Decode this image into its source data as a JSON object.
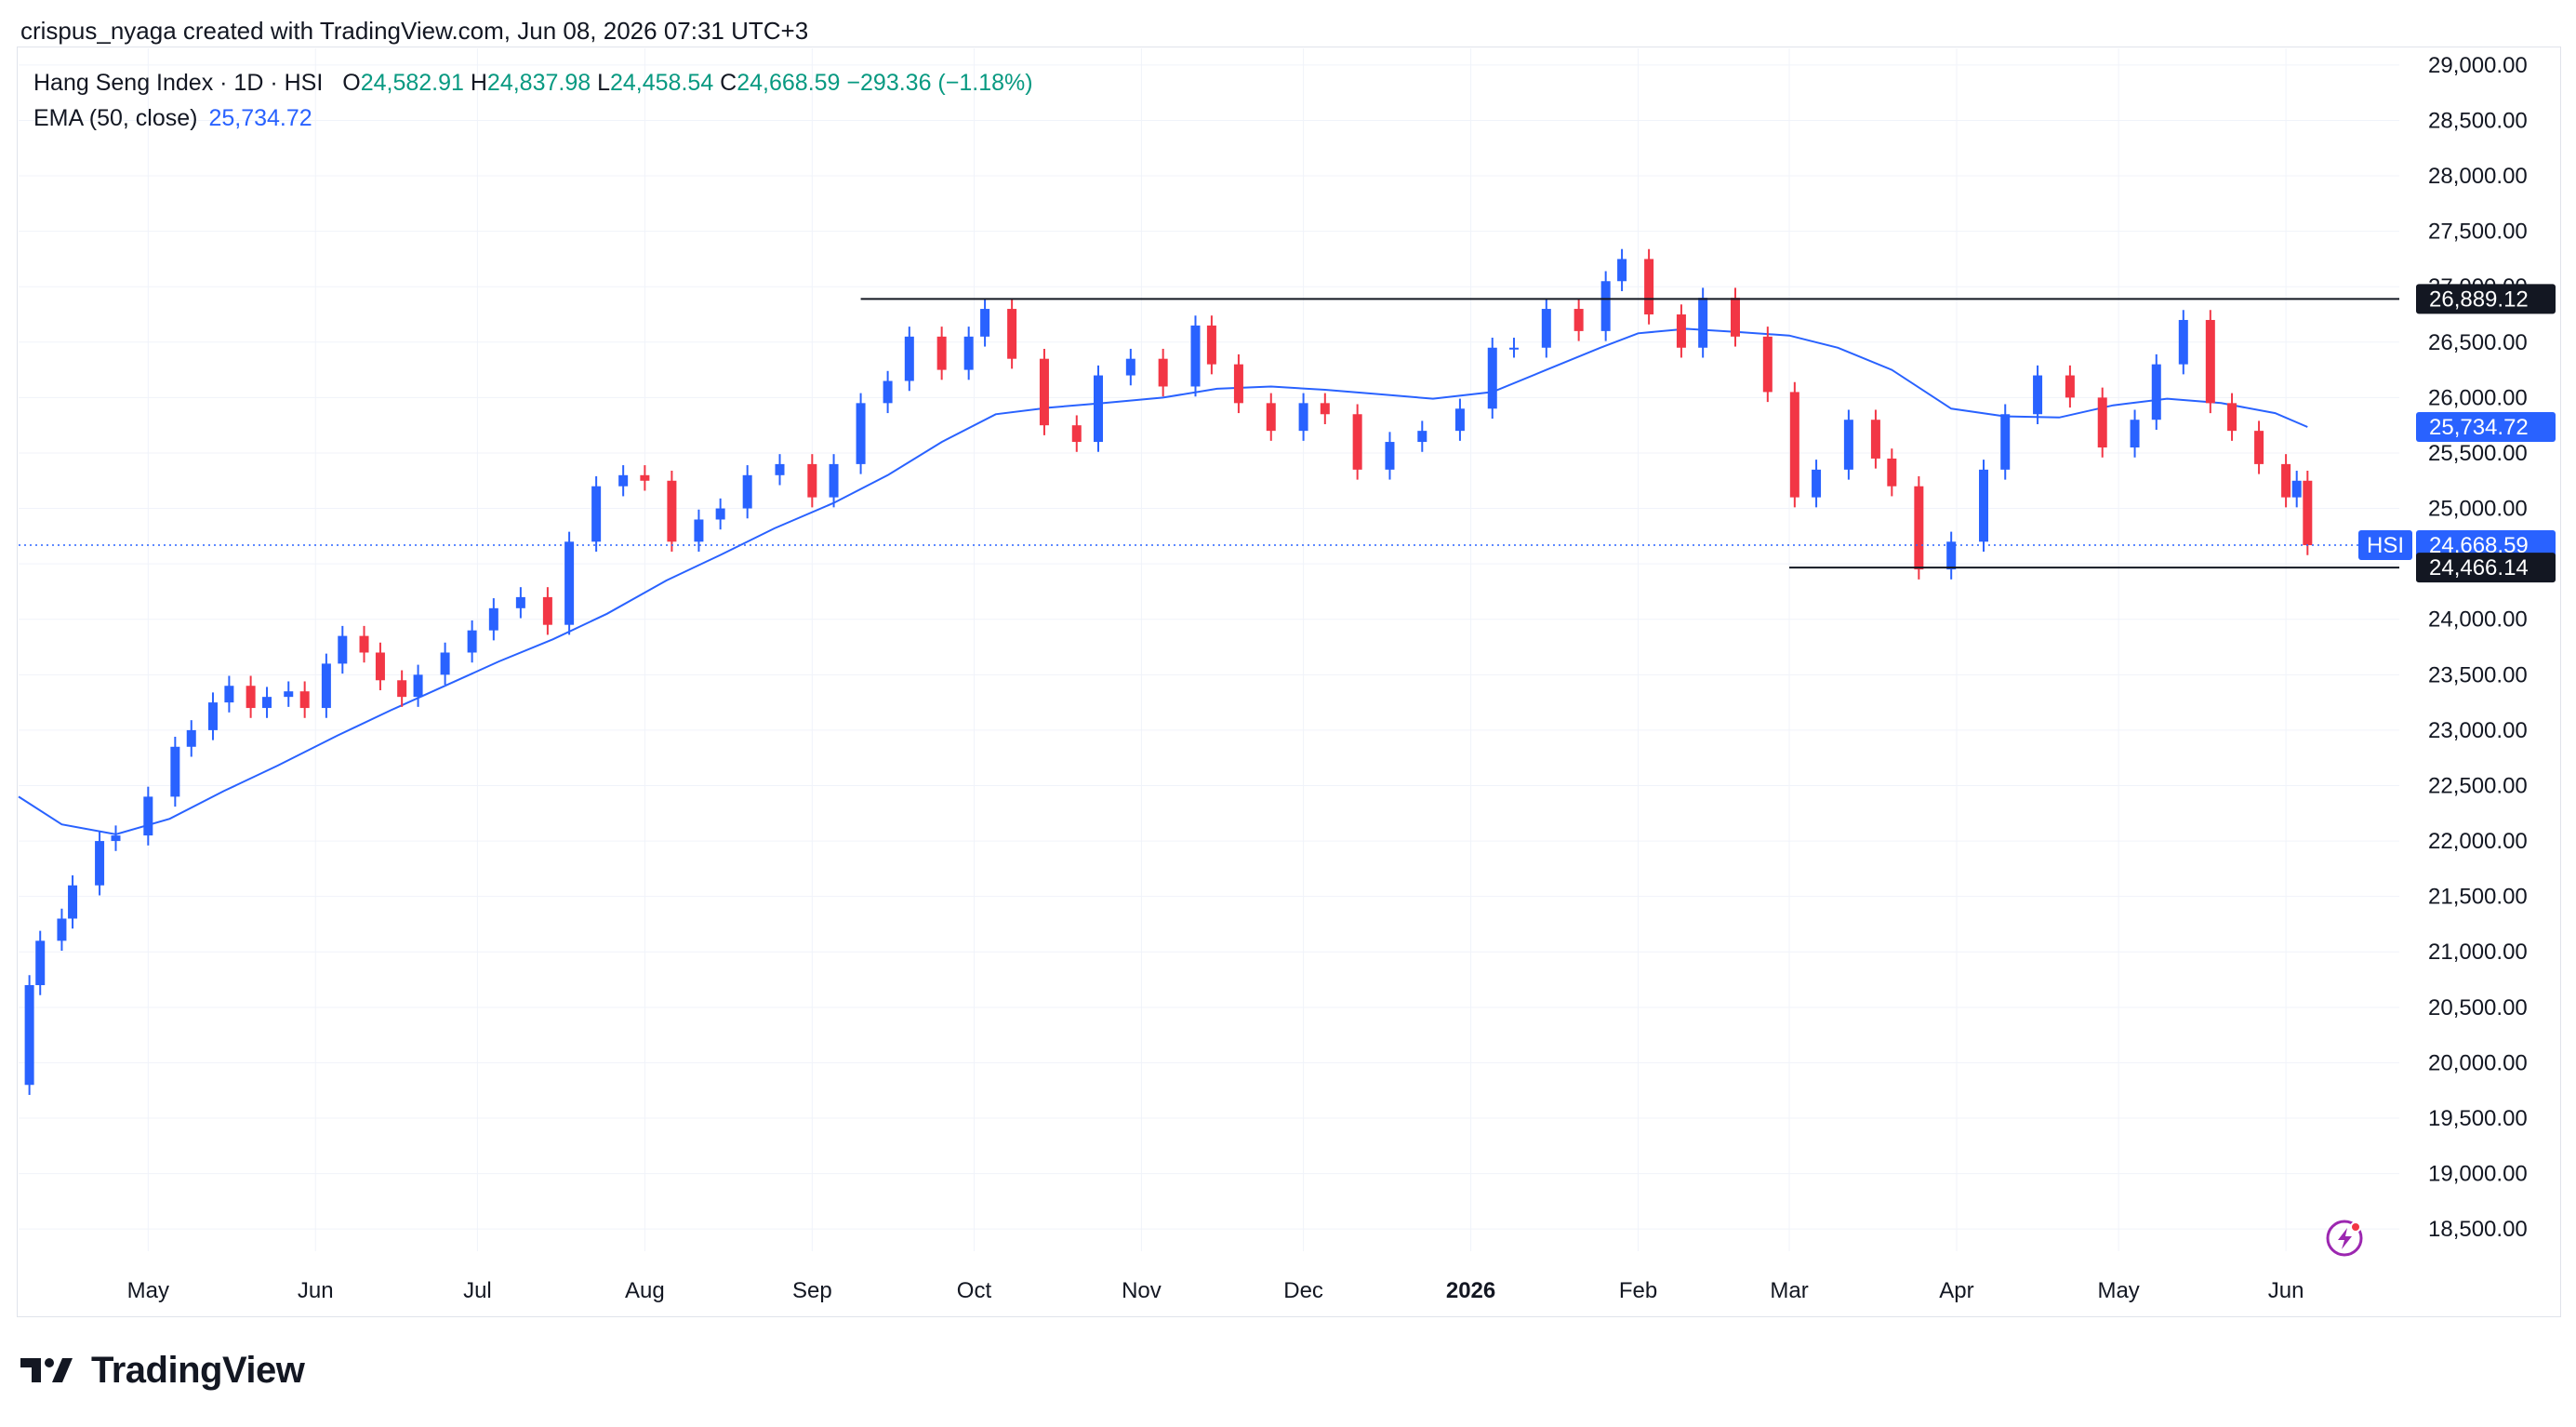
{
  "header": {
    "text": "crispus_nyaga created with TradingView.com, Jun 08, 2026 07:31 UTC+3"
  },
  "legend": {
    "symbol": "Hang Seng Index · 1D · HSI",
    "open_key": "O",
    "open": "24,582.91",
    "high_key": "H",
    "high": "24,837.98",
    "low_key": "L",
    "low": "24,458.54",
    "close_key": "C",
    "close": "24,668.59",
    "change": "−293.36 (−1.18%)",
    "ema_label": "EMA (50, close)",
    "ema_value": "25,734.72"
  },
  "footer": {
    "brand": "TradingView"
  },
  "colors": {
    "up": "#2962ff",
    "down": "#f23645",
    "ema": "#2962ff",
    "line": "#131722",
    "price_line": "#2962ff"
  },
  "chart_data": {
    "type": "candlestick",
    "title": "Hang Seng Index · 1D · HSI",
    "y_range": [
      18300,
      29150
    ],
    "y_ticks": [
      "29,000.00",
      "28,500.00",
      "28,000.00",
      "27,500.00",
      "27,000.00",
      "26,500.00",
      "26,000.00",
      "25,500.00",
      "25,000.00",
      "24,500.00",
      "24,000.00",
      "23,500.00",
      "23,000.00",
      "22,500.00",
      "22,000.00",
      "21,500.00",
      "21,000.00",
      "20,500.00",
      "20,000.00",
      "19,500.00",
      "19,000.00",
      "18,500.00"
    ],
    "x_range": [
      "2025-04-07",
      "2026-06-22"
    ],
    "x_labels": [
      {
        "date": "2025-05-01",
        "label": "May",
        "bold": false
      },
      {
        "date": "2025-06-01",
        "label": "Jun",
        "bold": false
      },
      {
        "date": "2025-07-01",
        "label": "Jul",
        "bold": false
      },
      {
        "date": "2025-08-01",
        "label": "Aug",
        "bold": false
      },
      {
        "date": "2025-09-01",
        "label": "Sep",
        "bold": false
      },
      {
        "date": "2025-10-01",
        "label": "Oct",
        "bold": false
      },
      {
        "date": "2025-11-01",
        "label": "Nov",
        "bold": false
      },
      {
        "date": "2025-12-01",
        "label": "Dec",
        "bold": false
      },
      {
        "date": "2026-01-01",
        "label": "2026",
        "bold": true
      },
      {
        "date": "2026-02-01",
        "label": "Feb",
        "bold": false
      },
      {
        "date": "2026-03-01",
        "label": "Mar",
        "bold": false
      },
      {
        "date": "2026-04-01",
        "label": "Apr",
        "bold": false
      },
      {
        "date": "2026-05-01",
        "label": "May",
        "bold": false
      },
      {
        "date": "2026-06-01",
        "label": "Jun",
        "bold": false
      }
    ],
    "close_series": {
      "dates": [
        "2025-04-07",
        "2025-04-09",
        "2025-04-11",
        "2025-04-15",
        "2025-04-17",
        "2025-04-22",
        "2025-04-25",
        "2025-05-01",
        "2025-05-06",
        "2025-05-09",
        "2025-05-13",
        "2025-05-16",
        "2025-05-20",
        "2025-05-23",
        "2025-05-27",
        "2025-05-30",
        "2025-06-03",
        "2025-06-06",
        "2025-06-10",
        "2025-06-13",
        "2025-06-17",
        "2025-06-20",
        "2025-06-25",
        "2025-06-30",
        "2025-07-04",
        "2025-07-09",
        "2025-07-14",
        "2025-07-18",
        "2025-07-23",
        "2025-07-28",
        "2025-08-01",
        "2025-08-06",
        "2025-08-11",
        "2025-08-15",
        "2025-08-20",
        "2025-08-26",
        "2025-09-01",
        "2025-09-05",
        "2025-09-10",
        "2025-09-15",
        "2025-09-19",
        "2025-09-25",
        "2025-09-30",
        "2025-10-03",
        "2025-10-08",
        "2025-10-14",
        "2025-10-20",
        "2025-10-24",
        "2025-10-30",
        "2025-11-05",
        "2025-11-11",
        "2025-11-14",
        "2025-11-19",
        "2025-11-25",
        "2025-12-01",
        "2025-12-05",
        "2025-12-11",
        "2025-12-17",
        "2025-12-23",
        "2025-12-30",
        "2026-01-05",
        "2026-01-09",
        "2026-01-15",
        "2026-01-21",
        "2026-01-26",
        "2026-01-29",
        "2026-02-03",
        "2026-02-09",
        "2026-02-13",
        "2026-02-19",
        "2026-02-25",
        "2026-03-02",
        "2026-03-06",
        "2026-03-12",
        "2026-03-17",
        "2026-03-20",
        "2026-03-25",
        "2026-03-31",
        "2026-04-06",
        "2026-04-10",
        "2026-04-16",
        "2026-04-22",
        "2026-04-28",
        "2026-05-04",
        "2026-05-08",
        "2026-05-13",
        "2026-05-18",
        "2026-05-22",
        "2026-05-27",
        "2026-06-01",
        "2026-06-03",
        "2026-06-05"
      ],
      "values": [
        19800,
        20700,
        21100,
        21300,
        21600,
        22000,
        22050,
        22400,
        22850,
        23000,
        23250,
        23400,
        23200,
        23300,
        23350,
        23200,
        23600,
        23850,
        23700,
        23450,
        23300,
        23500,
        23700,
        23900,
        24100,
        24200,
        23950,
        24700,
        25200,
        25300,
        25250,
        24700,
        24900,
        25000,
        25300,
        25400,
        25100,
        25400,
        25950,
        26150,
        26550,
        26250,
        26550,
        26800,
        26350,
        25750,
        25600,
        26200,
        26350,
        26100,
        26650,
        26300,
        25950,
        25700,
        25950,
        25850,
        25350,
        25600,
        25700,
        25900,
        26450,
        26450,
        26800,
        26600,
        27050,
        27250,
        26750,
        26450,
        26900,
        26550,
        26050,
        25100,
        25350,
        25800,
        25450,
        25200,
        24450,
        24700,
        25350,
        25850,
        26200,
        26000,
        25550,
        25800,
        26300,
        26700,
        25950,
        25700,
        25400,
        25100,
        25250,
        24668.59
      ]
    },
    "ema_series": {
      "name": "EMA (50, close)",
      "dates": [
        "2025-04-07",
        "2025-04-15",
        "2025-04-25",
        "2025-05-05",
        "2025-05-15",
        "2025-05-25",
        "2025-06-05",
        "2025-06-15",
        "2025-06-25",
        "2025-07-05",
        "2025-07-15",
        "2025-07-25",
        "2025-08-05",
        "2025-08-15",
        "2025-08-25",
        "2025-09-05",
        "2025-09-15",
        "2025-09-25",
        "2025-10-05",
        "2025-10-15",
        "2025-10-25",
        "2025-11-05",
        "2025-11-15",
        "2025-11-25",
        "2025-12-05",
        "2025-12-15",
        "2025-12-25",
        "2026-01-05",
        "2026-01-15",
        "2026-01-25",
        "2026-02-01",
        "2026-02-10",
        "2026-02-20",
        "2026-03-01",
        "2026-03-10",
        "2026-03-20",
        "2026-03-31",
        "2026-04-10",
        "2026-04-20",
        "2026-04-30",
        "2026-05-10",
        "2026-05-20",
        "2026-05-30",
        "2026-06-05"
      ],
      "values": [
        22400,
        22150,
        22060,
        22200,
        22450,
        22680,
        22950,
        23180,
        23400,
        23620,
        23820,
        24050,
        24350,
        24580,
        24820,
        25050,
        25300,
        25600,
        25850,
        25910,
        25950,
        26000,
        26080,
        26100,
        26070,
        26030,
        25990,
        26050,
        26250,
        26450,
        26580,
        26620,
        26590,
        26560,
        26450,
        26250,
        25900,
        25830,
        25820,
        25930,
        25990,
        25950,
        25860,
        25734.72
      ]
    },
    "resistance": {
      "value": 26889.12,
      "label": "26,889.12",
      "from": "2025-09-10",
      "to": "2026-06-22"
    },
    "support": {
      "value": 24466.14,
      "label": "24,466.14",
      "from": "2026-03-01",
      "to": "2026-06-22"
    },
    "last_price": {
      "value": 24668.59,
      "label": "24,668.59",
      "symbol": "HSI"
    },
    "ema_last": {
      "value": 25734.72,
      "label": "25,734.72"
    }
  }
}
